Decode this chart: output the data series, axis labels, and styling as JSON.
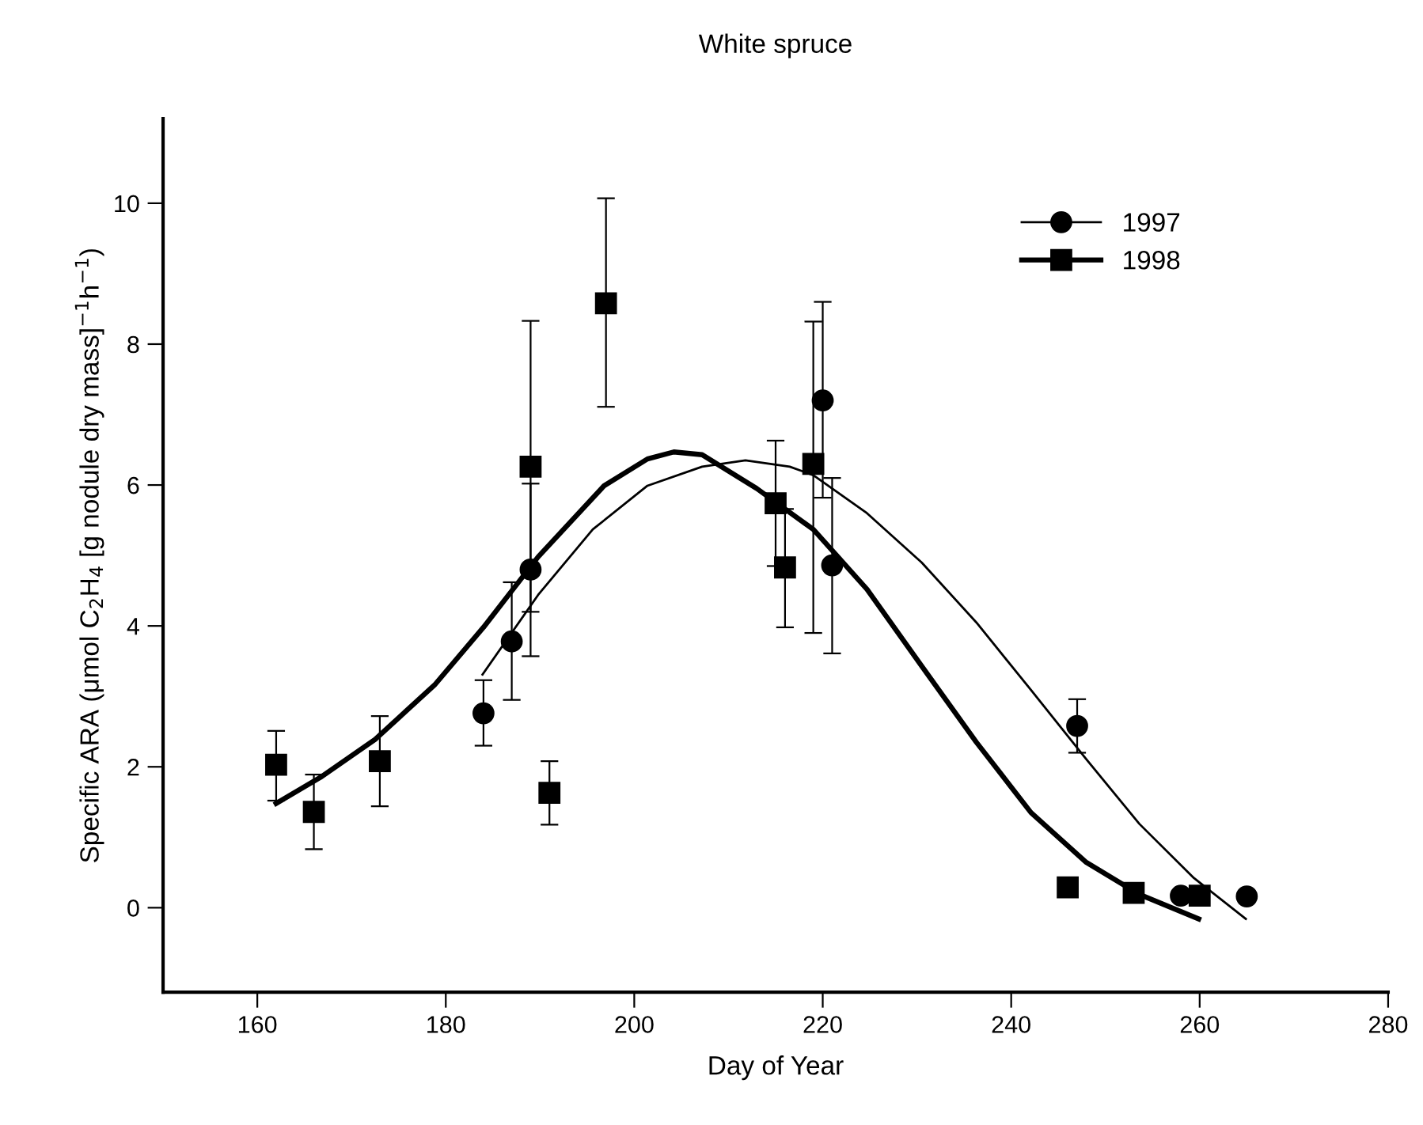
{
  "chart_data": {
    "type": "scatter",
    "title": "White spruce",
    "xlabel": "Day of Year",
    "ylabel": "Specific ARA (μmol C$_{2}$H$_{4}$ [g nodule dry mass]$^{−1}$h$^{−1}$)",
    "xlim": [
      150,
      280
    ],
    "xticks": [
      160,
      180,
      200,
      220,
      240,
      260,
      280
    ],
    "ylim": [
      -1.2,
      11.2
    ],
    "yticks": [
      0,
      2,
      4,
      6,
      8,
      10
    ],
    "legend": "top right",
    "grid": false,
    "series": [
      {
        "name": "1997",
        "marker": "circle",
        "color": "#000000",
        "x": [
          184,
          187,
          189,
          220,
          221,
          247,
          258,
          265
        ],
        "values": [
          2.76,
          3.78,
          4.8,
          7.2,
          4.86,
          2.58,
          0.17,
          0.16
        ],
        "errors": [
          [
            2.3,
            3.23
          ],
          [
            2.95,
            4.62
          ],
          [
            3.57,
            6.02
          ],
          [
            5.82,
            8.6
          ],
          [
            3.61,
            6.1
          ],
          [
            2.2,
            2.96
          ],
          null,
          null
        ]
      },
      {
        "name": "1998",
        "marker": "square",
        "color": "#000000",
        "x": [
          162,
          166,
          173,
          189,
          191,
          197,
          215,
          216,
          219,
          246,
          253,
          260
        ],
        "values": [
          2.03,
          1.36,
          2.08,
          6.26,
          1.63,
          8.58,
          5.74,
          4.83,
          6.3,
          0.29,
          0.21,
          0.17
        ],
        "errors": [
          [
            1.52,
            2.51
          ],
          [
            0.83,
            1.89
          ],
          [
            1.44,
            2.72
          ],
          [
            4.2,
            8.33
          ],
          [
            1.18,
            2.08
          ],
          [
            7.11,
            10.07
          ],
          [
            4.85,
            6.63
          ],
          [
            3.98,
            5.66
          ],
          [
            3.9,
            8.32
          ],
          null,
          null,
          null
        ]
      },
      {
        "type": "line",
        "marker": "none",
        "color": "#000000",
        "x": [
          183.9,
          189.8,
          195.6,
          201.4,
          207.2,
          211.8,
          216.5,
          219,
          224.7,
          230.5,
          236.3,
          242.1,
          247.9,
          253.6,
          259.4,
          264.9
        ],
        "values": [
          3.31,
          4.44,
          5.37,
          5.99,
          6.26,
          6.35,
          6.26,
          6.14,
          5.6,
          4.9,
          4.05,
          3.09,
          2.12,
          1.19,
          0.42,
          -0.16
        ]
      },
      {
        "type": "line",
        "marker": "none",
        "color": "#000000",
        "x": [
          162,
          166.7,
          172.5,
          178.8,
          184,
          189.8,
          196.8,
          201.4,
          204.2,
          207.2,
          213,
          219,
          224.7,
          230.5,
          236.3,
          242.1,
          247.9,
          253.6,
          259.9
        ],
        "values": [
          1.48,
          1.85,
          2.39,
          3.16,
          3.98,
          4.98,
          5.99,
          6.37,
          6.47,
          6.43,
          5.95,
          5.37,
          4.52,
          3.43,
          2.35,
          1.35,
          0.65,
          0.19,
          -0.16
        ]
      }
    ]
  }
}
